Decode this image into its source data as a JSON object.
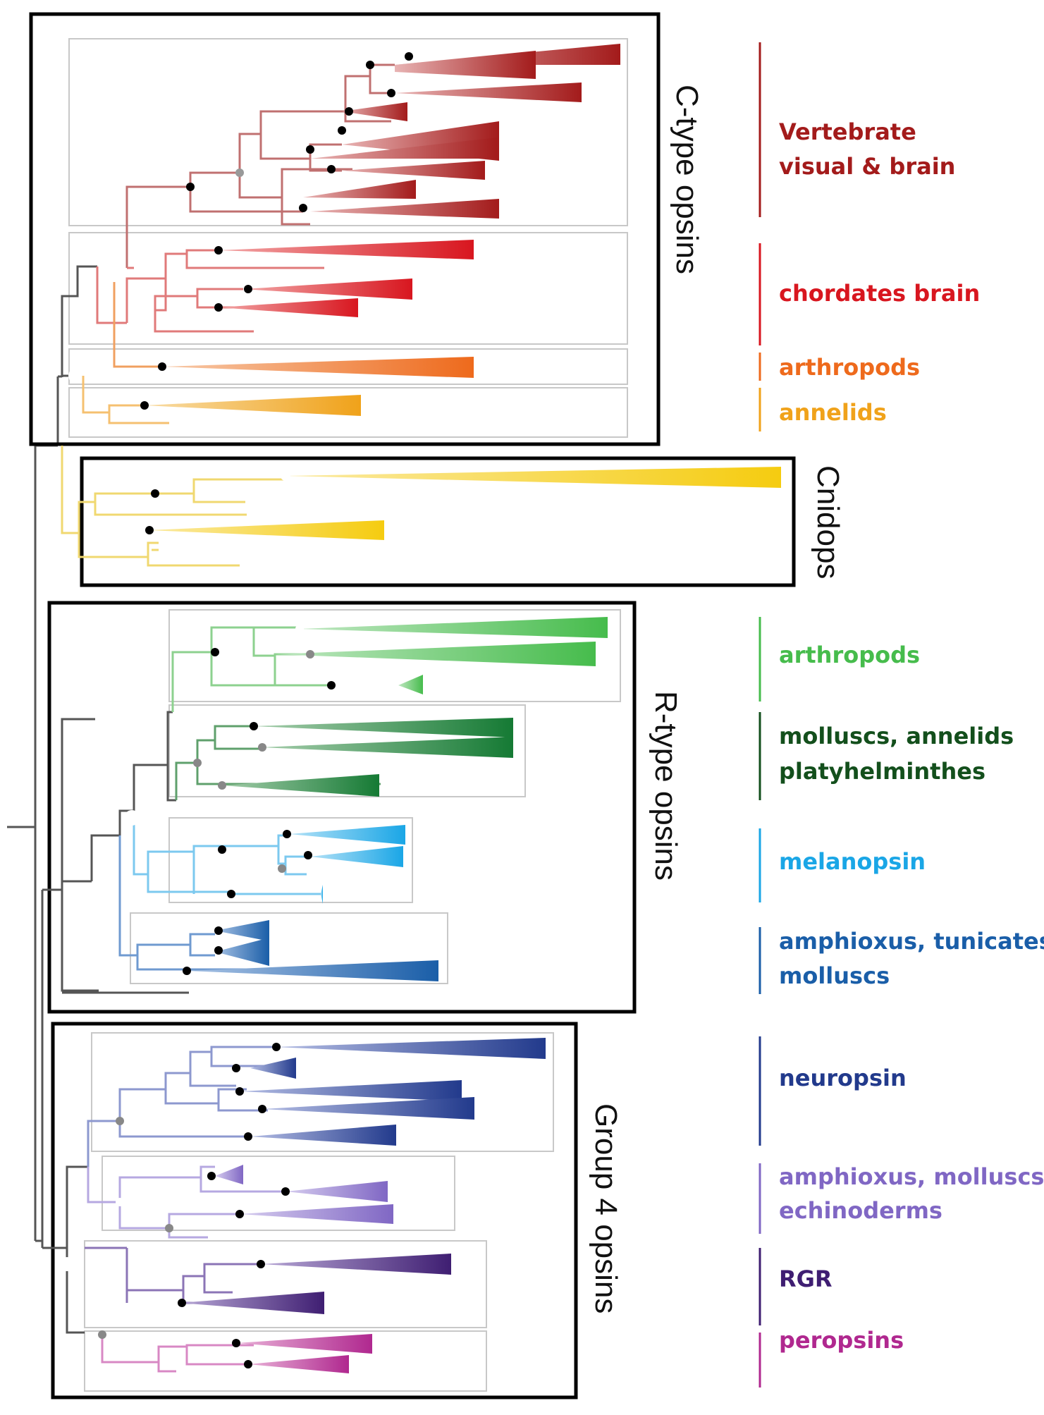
{
  "groups": {
    "ctype": "C-type opsins",
    "cnidops": "Cnidops",
    "rtype": "R-type opsins",
    "group4": "Group 4 opsins"
  },
  "clades": {
    "vertebrate": {
      "line1": "Vertebrate",
      "line2": "visual & brain",
      "color": "#a31b1b"
    },
    "chordates": {
      "line1": "chordates brain",
      "color": "#d8161f"
    },
    "arthropods_c": {
      "line1": "arthropods",
      "color": "#ee6a1c"
    },
    "annelids": {
      "line1": "annelids",
      "color": "#f0a21a"
    },
    "cnidops": {
      "color": "#f5cc10"
    },
    "arthropods_r": {
      "line1": "arthropods",
      "color": "#46bc4c"
    },
    "molluscs": {
      "line1": "molluscs, annelids",
      "line2": "platyhelminthes",
      "color": "#134f1c"
    },
    "melanopsin": {
      "line1": "melanopsin",
      "color": "#1aa6e6"
    },
    "amphioxus_r": {
      "line1": "amphioxus, tunicates",
      "line2": "molluscs",
      "color": "#1a5ea8"
    },
    "neuropsin": {
      "line1": "neuropsin",
      "color": "#223a8c"
    },
    "amphioxus_4": {
      "line1": "amphioxus, molluscs",
      "line2": "echinoderms",
      "color": "#8067c4"
    },
    "rgr": {
      "line1": "RGR",
      "color": "#3f1e72"
    },
    "peropsins": {
      "line1": "peropsins",
      "color": "#b0288f"
    }
  }
}
